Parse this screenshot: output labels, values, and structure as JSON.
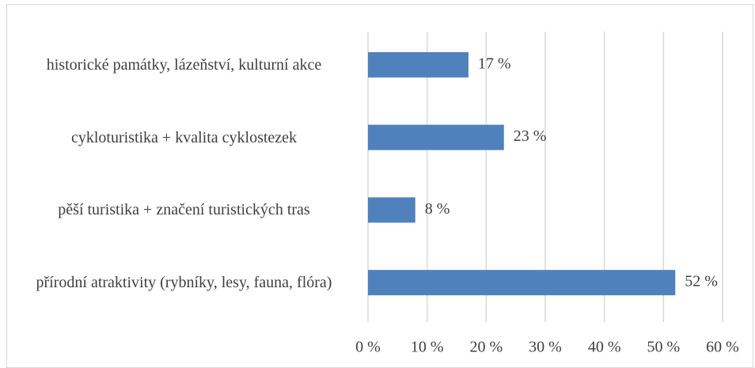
{
  "chart_data": {
    "type": "bar",
    "orientation": "horizontal",
    "categories": [
      "historické památky, lázeňství, kulturní akce",
      "cykloturistika + kvalita cyklostezek",
      "pěší turistika + značení turistických tras",
      "přírodní atraktivity (rybníky, lesy, fauna, flóra)"
    ],
    "values": [
      17,
      23,
      8,
      52
    ],
    "value_labels": [
      "17 %",
      "23 %",
      "8 %",
      "52 %"
    ],
    "color": "#4f81bd",
    "xlim": [
      0,
      60
    ],
    "xticks": [
      {
        "value": 0,
        "label": "0 %"
      },
      {
        "value": 10,
        "label": "10 %"
      },
      {
        "value": 20,
        "label": "20 %"
      },
      {
        "value": 30,
        "label": "30 %"
      },
      {
        "value": 40,
        "label": "40 %"
      },
      {
        "value": 50,
        "label": "50 %"
      },
      {
        "value": 60,
        "label": "60 %"
      }
    ],
    "grid": true
  }
}
